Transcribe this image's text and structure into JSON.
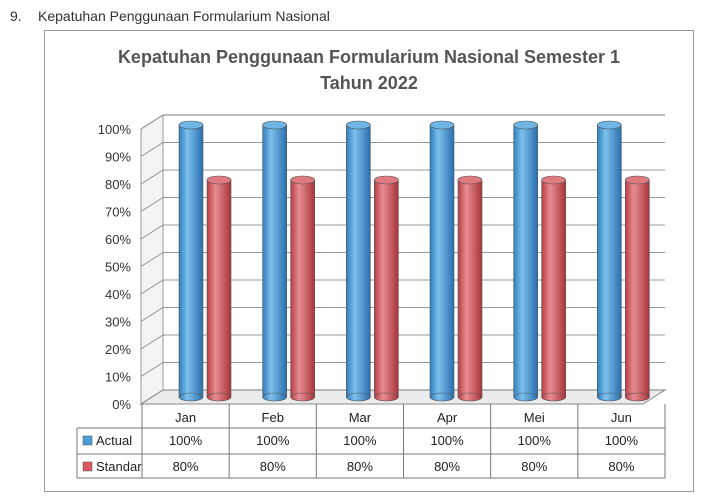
{
  "heading": {
    "number": "9.",
    "text": "Kepatuhan Penggunaan Formularium Nasional"
  },
  "chart_data": {
    "type": "bar",
    "title_line1": "Kepatuhan Penggunaan Formularium Nasional Semester 1",
    "title_line2": "Tahun 2022",
    "categories": [
      "Jan",
      "Feb",
      "Mar",
      "Apr",
      "Mei",
      "Jun"
    ],
    "series": [
      {
        "name": "Actual",
        "values": [
          100,
          100,
          100,
          100,
          100,
          100
        ],
        "labels": [
          "100%",
          "100%",
          "100%",
          "100%",
          "100%",
          "100%"
        ],
        "color": "#4a9fd8"
      },
      {
        "name": "Standar",
        "values": [
          80,
          80,
          80,
          80,
          80,
          80
        ],
        "labels": [
          "80%",
          "80%",
          "80%",
          "80%",
          "80%",
          "80%"
        ],
        "color": "#d9595f"
      }
    ],
    "ylim": [
      0,
      100
    ],
    "yticks": [
      "0%",
      "10%",
      "20%",
      "30%",
      "40%",
      "50%",
      "60%",
      "70%",
      "80%",
      "90%",
      "100%"
    ],
    "grid": true,
    "legend": "data-table"
  }
}
